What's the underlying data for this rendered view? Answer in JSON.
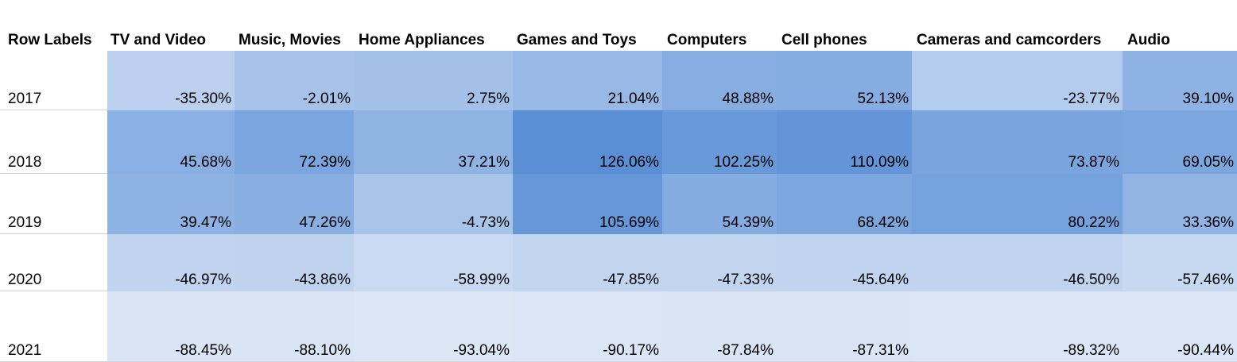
{
  "chart_data": {
    "type": "heatmap",
    "corner_label": "Row Labels",
    "columns": [
      "TV and Video",
      "Music, Movies",
      "Home Appliances",
      "Games and Toys",
      "Computers",
      "Cell phones",
      "Cameras and camcorders",
      "Audio"
    ],
    "rows": [
      {
        "label": "2017",
        "values": [
          "-35.30%",
          "-2.01%",
          "2.75%",
          "21.04%",
          "48.88%",
          "52.13%",
          "-23.77%",
          "39.10%"
        ],
        "numeric": [
          -35.3,
          -2.01,
          2.75,
          21.04,
          48.88,
          52.13,
          -23.77,
          39.1
        ]
      },
      {
        "label": "2018",
        "values": [
          "45.68%",
          "72.39%",
          "37.21%",
          "126.06%",
          "102.25%",
          "110.09%",
          "73.87%",
          "69.05%"
        ],
        "numeric": [
          45.68,
          72.39,
          37.21,
          126.06,
          102.25,
          110.09,
          73.87,
          69.05
        ]
      },
      {
        "label": "2019",
        "values": [
          "39.47%",
          "47.26%",
          "-4.73%",
          "105.69%",
          "54.39%",
          "68.42%",
          "80.22%",
          "33.36%"
        ],
        "numeric": [
          39.47,
          47.26,
          -4.73,
          105.69,
          54.39,
          68.42,
          80.22,
          33.36
        ]
      },
      {
        "label": "2020",
        "values": [
          "-46.97%",
          "-43.86%",
          "-58.99%",
          "-47.85%",
          "-47.33%",
          "-45.64%",
          "-46.50%",
          "-57.46%"
        ],
        "numeric": [
          -46.97,
          -43.86,
          -58.99,
          -47.85,
          -47.33,
          -45.64,
          -46.5,
          -57.46
        ]
      },
      {
        "label": "2021",
        "values": [
          "-88.45%",
          "-88.10%",
          "-93.04%",
          "-90.17%",
          "-87.84%",
          "-87.31%",
          "-89.32%",
          "-90.44%"
        ],
        "numeric": [
          -88.45,
          -88.1,
          -93.04,
          -90.17,
          -87.84,
          -87.31,
          -89.32,
          -90.44
        ]
      }
    ],
    "color_scale": {
      "low": "#dce7f6",
      "high": "#5a8fd6"
    }
  }
}
